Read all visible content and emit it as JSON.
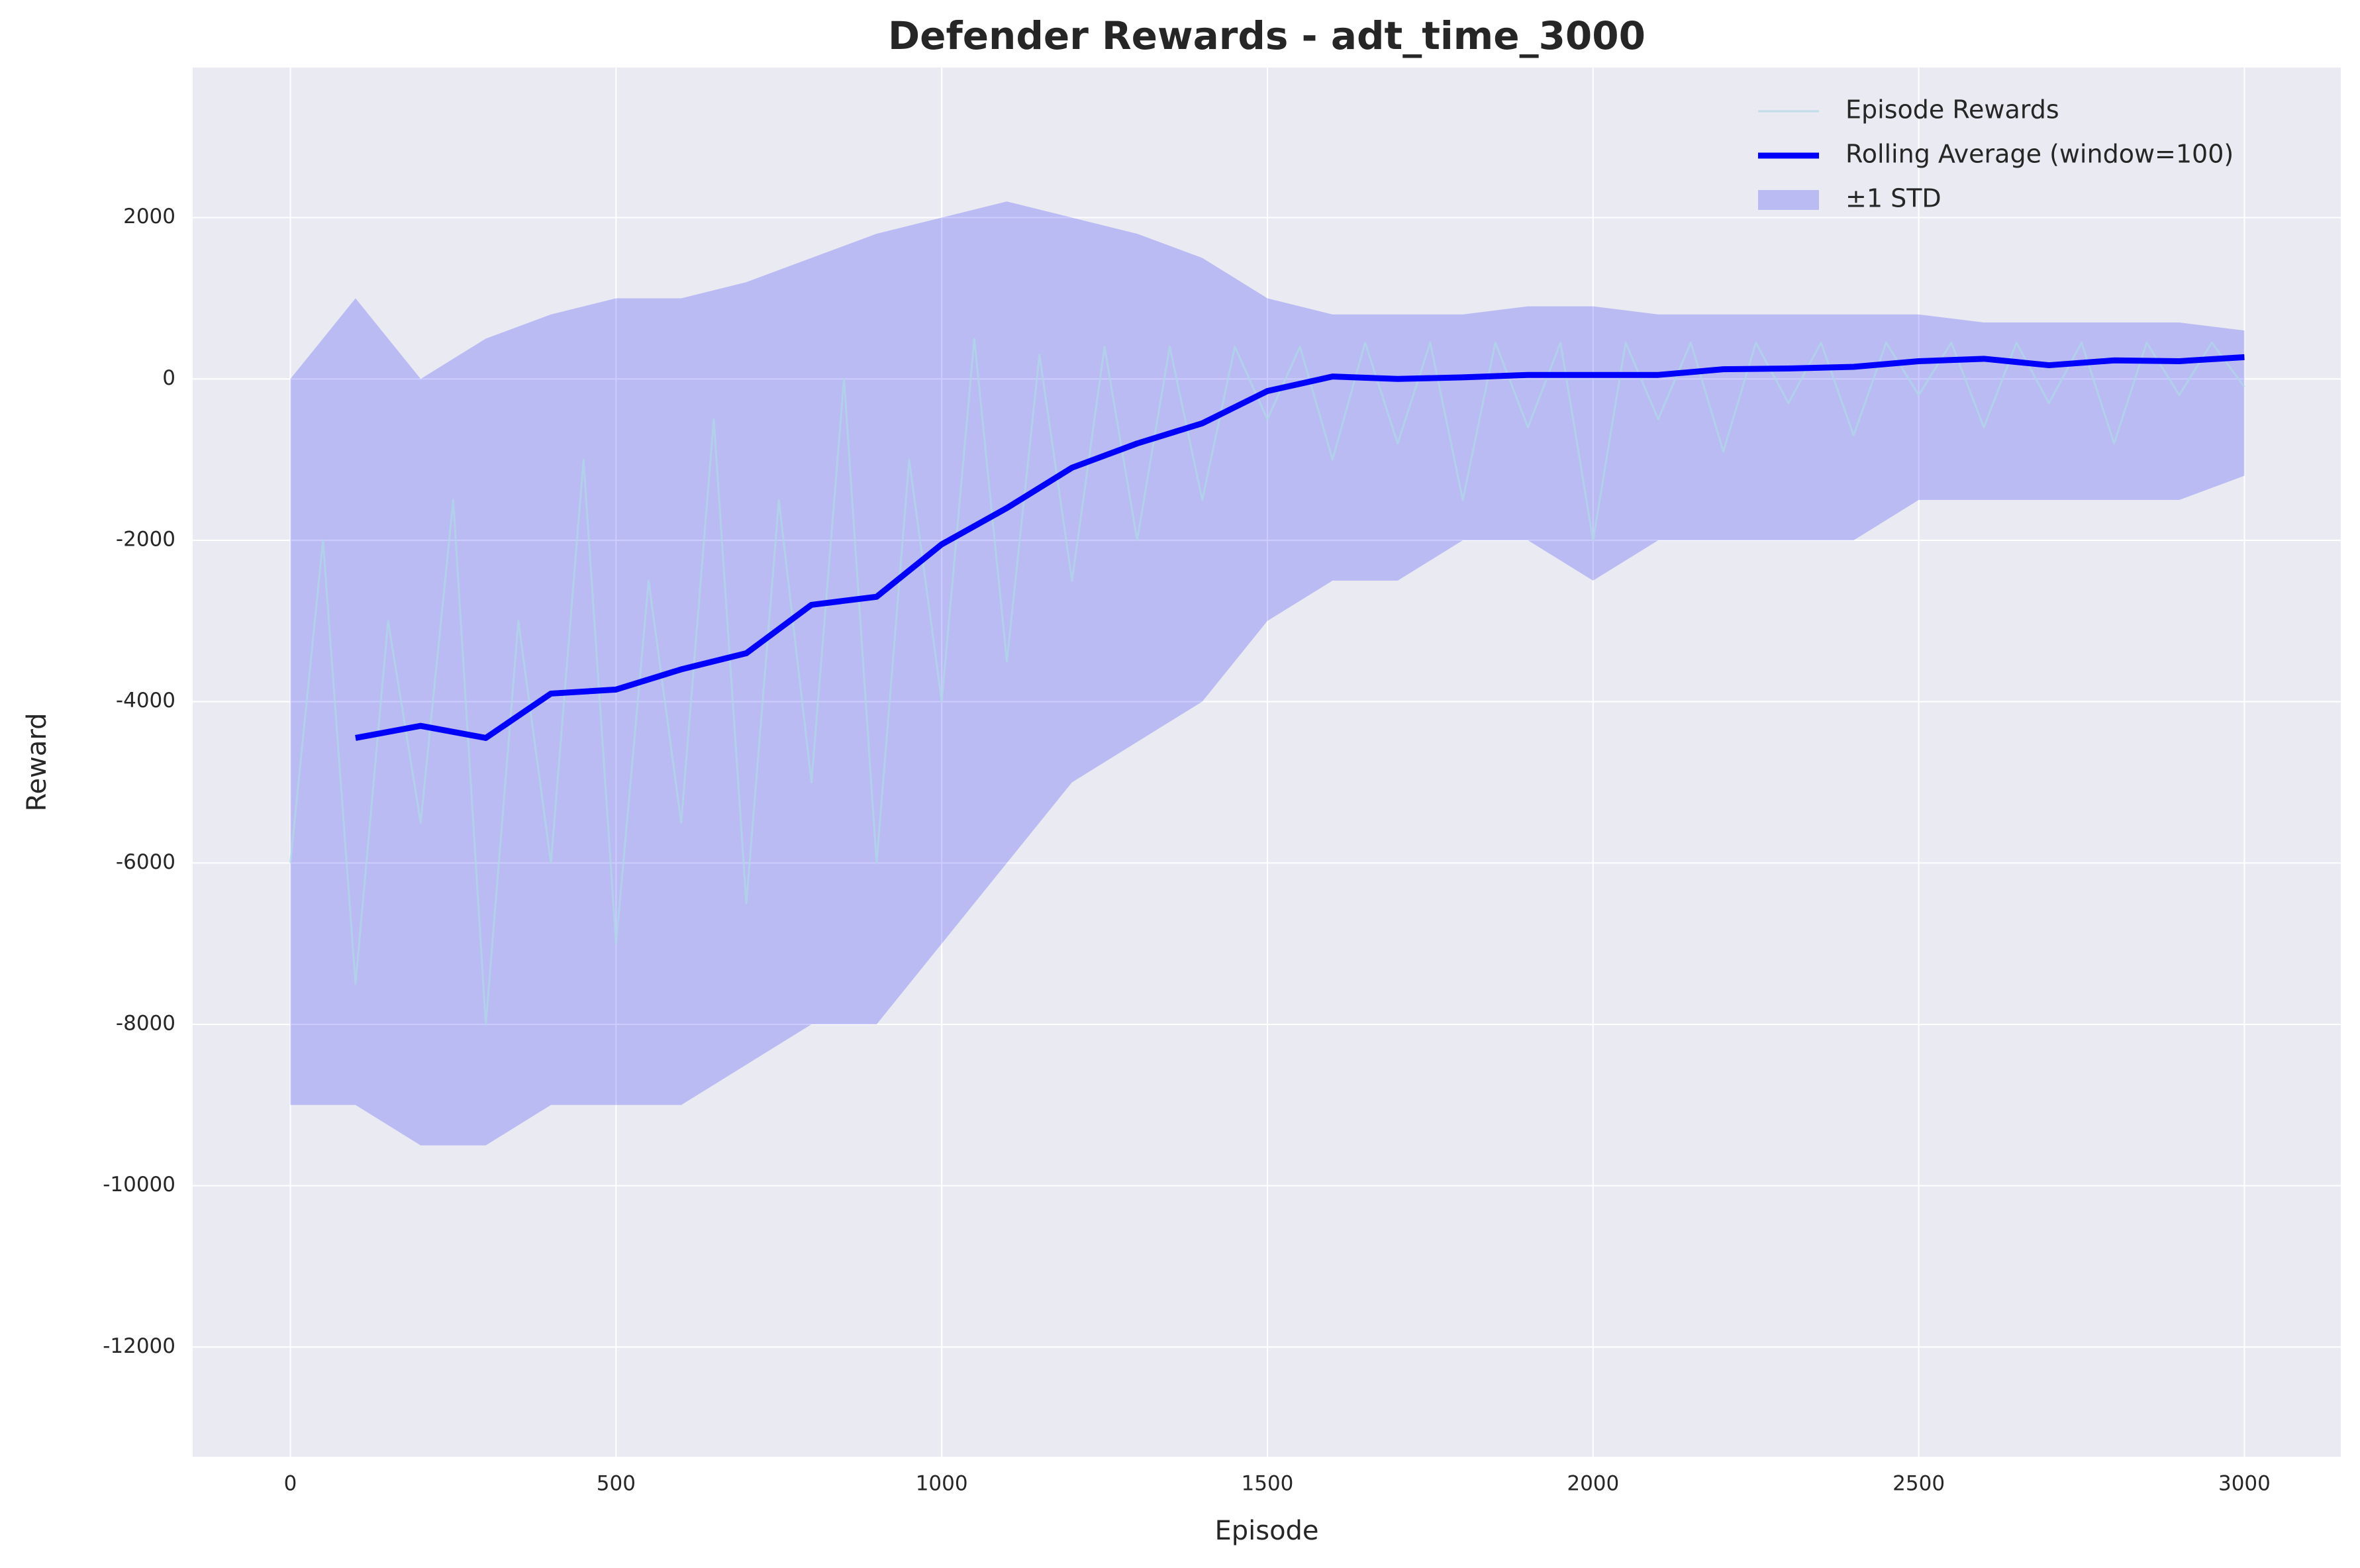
{
  "chart_data": {
    "type": "line",
    "title": "Defender Rewards - adt_time_3000",
    "x_label": "Episode",
    "y_label": "Reward",
    "xlim": [
      -150,
      3148
    ],
    "ylim": [
      -13360,
      3860
    ],
    "xticks": [
      0,
      500,
      1000,
      1500,
      2000,
      2500,
      3000
    ],
    "yticks": [
      -12000,
      -10000,
      -8000,
      -6000,
      -4000,
      -2000,
      0,
      2000
    ],
    "grid": true,
    "legend": "upper right",
    "series": [
      {
        "name": "Episode Rewards",
        "kind": "line",
        "color": "#add8e6",
        "x": [
          0,
          50,
          100,
          150,
          200,
          250,
          300,
          350,
          400,
          450,
          500,
          550,
          600,
          650,
          700,
          750,
          800,
          850,
          900,
          950,
          1000,
          1050,
          1100,
          1150,
          1200,
          1250,
          1300,
          1350,
          1400,
          1450,
          1500,
          1550,
          1600,
          1650,
          1700,
          1750,
          1800,
          1850,
          1900,
          1950,
          2000,
          2050,
          2100,
          2150,
          2200,
          2250,
          2300,
          2350,
          2400,
          2450,
          2500,
          2550,
          2600,
          2650,
          2700,
          2750,
          2800,
          2850,
          2900,
          2950,
          3000
        ],
        "values": [
          -6000,
          -2000,
          -7500,
          -3000,
          -5500,
          -1500,
          -8000,
          -3000,
          -6000,
          -1000,
          -7000,
          -2500,
          -5500,
          -500,
          -6500,
          -1500,
          -5000,
          0,
          -6000,
          -1000,
          -4000,
          500,
          -3500,
          300,
          -2500,
          400,
          -2000,
          400,
          -1500,
          400,
          -500,
          400,
          -1000,
          450,
          -800,
          450,
          -1500,
          450,
          -600,
          450,
          -2000,
          450,
          -500,
          450,
          -900,
          450,
          -300,
          450,
          -700,
          450,
          -200,
          450,
          -600,
          450,
          -300,
          450,
          -800,
          450,
          -200,
          450,
          -100
        ]
      },
      {
        "name": "Rolling Average (window=100)",
        "kind": "line",
        "color": "#0000ff",
        "x": [
          100,
          200,
          300,
          400,
          500,
          600,
          700,
          800,
          900,
          1000,
          1100,
          1200,
          1300,
          1400,
          1500,
          1600,
          1700,
          1800,
          1900,
          2000,
          2100,
          2200,
          2300,
          2400,
          2500,
          2600,
          2700,
          2800,
          2900,
          3000
        ],
        "values": [
          -4450,
          -4300,
          -4450,
          -3900,
          -3850,
          -3600,
          -3400,
          -2800,
          -2700,
          -2050,
          -1600,
          -1100,
          -800,
          -550,
          -150,
          30,
          0,
          20,
          50,
          50,
          50,
          120,
          130,
          150,
          220,
          250,
          170,
          230,
          220,
          270
        ]
      },
      {
        "name": "±1 STD",
        "kind": "band",
        "color": "#0000ff",
        "x": [
          0,
          100,
          200,
          300,
          400,
          500,
          600,
          700,
          800,
          900,
          1000,
          1100,
          1200,
          1300,
          1400,
          1500,
          1600,
          1700,
          1800,
          1900,
          2000,
          2100,
          2200,
          2300,
          2400,
          2500,
          2600,
          2700,
          2800,
          2900,
          3000
        ],
        "upper": [
          0,
          1000,
          0,
          500,
          800,
          1000,
          1000,
          1200,
          1500,
          1800,
          2000,
          2200,
          2000,
          1800,
          1500,
          1000,
          800,
          800,
          800,
          900,
          900,
          800,
          800,
          800,
          800,
          800,
          700,
          700,
          700,
          700,
          600
        ],
        "lower": [
          -9000,
          -9000,
          -9500,
          -9500,
          -9000,
          -9000,
          -9000,
          -8500,
          -8000,
          -8000,
          -7000,
          -6000,
          -5000,
          -4500,
          -4000,
          -3000,
          -2500,
          -2500,
          -2000,
          -2000,
          -2500,
          -2000,
          -2000,
          -2000,
          -2000,
          -1500,
          -1500,
          -1500,
          -1500,
          -1500,
          -1200
        ]
      }
    ]
  }
}
